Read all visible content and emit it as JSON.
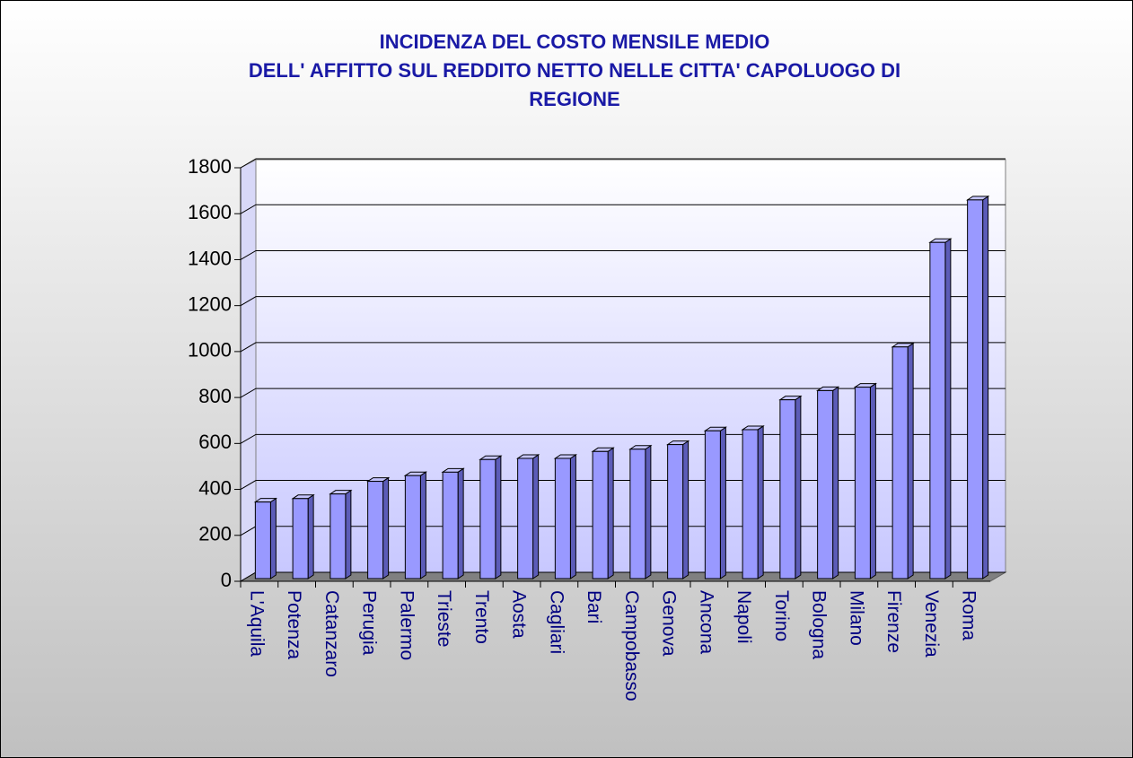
{
  "chart_data": {
    "type": "bar",
    "title": [
      "INCIDENZA DEL COSTO MENSILE MEDIO",
      "DELL' AFFITTO SUL REDDITO NETTO NELLE CITTA' CAPOLUOGO DI",
      "REGIONE"
    ],
    "categories": [
      "L'Aquila",
      "Potenza",
      "Catanzaro",
      "Perugia",
      "Palermo",
      "Trieste",
      "Trento",
      "Aosta",
      "Cagliari",
      "Bari",
      "Campobasso",
      "Genova",
      "Ancona",
      "Napoli",
      "Torino",
      "Bologna",
      "Milano",
      "Firenze",
      "Venezia",
      "Roma"
    ],
    "values": [
      345,
      360,
      380,
      435,
      460,
      475,
      530,
      535,
      535,
      565,
      575,
      595,
      655,
      660,
      790,
      830,
      845,
      1020,
      1475,
      1660
    ],
    "color": "#9999ff",
    "ylim": [
      0,
      1800
    ],
    "yticks": [
      0,
      200,
      400,
      600,
      800,
      1000,
      1200,
      1400,
      1600,
      1800
    ],
    "grid": true
  }
}
